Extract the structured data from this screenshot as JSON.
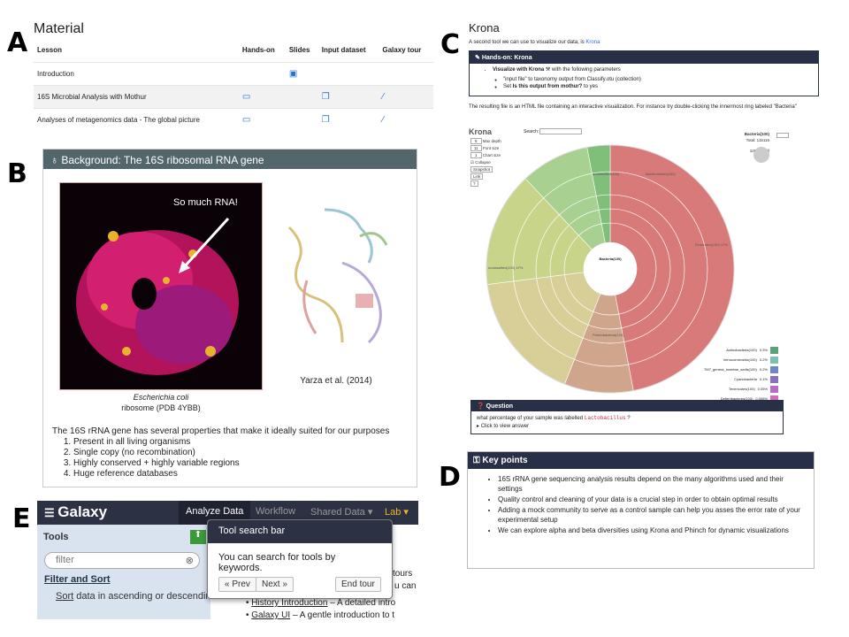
{
  "panel_labels": {
    "a": "A",
    "b": "B",
    "c": "C",
    "d": "D",
    "e": "E"
  },
  "material": {
    "title": "Material",
    "columns": [
      "Lesson",
      "Hands-on",
      "Slides",
      "Input dataset",
      "Galaxy tour"
    ],
    "rows": [
      {
        "lesson": "Introduction"
      },
      {
        "lesson": "16S Microbial Analysis with Mothur"
      },
      {
        "lesson": "Analyses of metagenomics data - The global picture"
      }
    ]
  },
  "background": {
    "title": "Background: The 16S ribosomal RNA gene",
    "image_label": "So much RNA!",
    "caption_species": "Escherichia coli",
    "caption_ribosome": "ribosome (PDB 4YBB)",
    "citation": "Yarza et al. (2014)",
    "intro": "The 16S rRNA gene has several properties that make it ideally suited for our purposes",
    "items": [
      "Present in all living organisms",
      "Single copy (no recombination)",
      "Highly conserved + highly variable regions",
      "Huge reference databases"
    ]
  },
  "krona": {
    "title": "Krona",
    "intro": "A second tool we can use to visualize our data, is",
    "intro_link": "Krona",
    "handson_title": "Hands-on: Krona",
    "step1_bold": "Visualize with Krona",
    "step1_rest": "with the following parameters",
    "param1": "\"input file\" to taxonomy output from Classify.otu (collection)",
    "param2_pre": "Set",
    "param2_bold": "Is this output from mothur?",
    "param2_post": "to yes",
    "result": "The resulting file is an HTML file containing an interactive visualization. For instance try double-clicking the innermost ring labeled \"Bacteria\"",
    "chart_center": "Bacteria(100)",
    "brand": "Krona",
    "search": "Search:",
    "max_depth": "Max depth",
    "font_size": "Font size",
    "chart_size": "Chart size",
    "collapse": "Collapse",
    "snapshot": "Snapshot",
    "link": "Link",
    "help": "?",
    "details_title": "Bacteria(100)",
    "total": "Total: 115116",
    "percent_of": "100% of all",
    "depth_value": "5",
    "font_value": "11",
    "chart_value": "1",
    "ring_labels": [
      "unclassified(100) 47%",
      "Firmicutes(100) 17%",
      "unclassified(100)",
      "Bacteroidetes(100)",
      "Proteobacteria(100)"
    ],
    "legend": [
      {
        "name": "Actinobacteria(100)",
        "pct": "0.3%",
        "color": "#5aa37a"
      },
      {
        "name": "Verrucomicrobia(100)",
        "pct": "0.2%",
        "color": "#7fbfae"
      },
      {
        "name": "TM7_genera_incertae_sedis(100)",
        "pct": "0.2%",
        "color": "#6f86c8"
      },
      {
        "name": "Cyanobacteria",
        "pct": "0.1%",
        "color": "#8a6ec2"
      },
      {
        "name": "Tenericutes(100)",
        "pct": "0.05%",
        "color": "#b76dc4"
      },
      {
        "name": "Deferribacteres(100)",
        "pct": "0.006%",
        "color": "#d56ab8"
      }
    ],
    "question_title": "Question",
    "question_pre": "what percentage of your sample was labelled",
    "question_code": "Lactobacillus",
    "question_post": "?",
    "answer": "Click to view answer"
  },
  "keypoints": {
    "title": "Key points",
    "items": [
      "16S rRNA gene sequencing analysis results depend on the many algorithms used and their settings",
      "Quality control and cleaning of your data is a crucial step in order to obtain optimal results",
      "Adding a mock community to serve as a control sample can help you asses the error rate of your experimental setup",
      "We can explore alpha and beta diversities using Krona and Phinch for dynamic visualizations"
    ]
  },
  "galaxy": {
    "logo": "Galaxy",
    "nav": [
      "Analyze Data",
      "Workflow",
      "Shared Data ▾",
      "Lab ▾"
    ],
    "tools_title": "Tools",
    "search_placeholder": "filter",
    "section": "Filter and Sort",
    "sort_link": "Sort",
    "sort_rest": "data in ascending or descending order",
    "doc_frag1": "tours",
    "doc_frag2": "u can",
    "doc_link1": "History Introduction",
    "doc_rest1": "– A detailed intro",
    "doc_link2": "Galaxy UI",
    "doc_rest2": "– A gentle introduction to t",
    "tour_title": "Tool search bar",
    "tour_body": "You can search for tools by keywords.",
    "prev": "« Prev",
    "next": "Next »",
    "end": "End tour"
  },
  "colors": {
    "galaxy_nav": "#2c3143",
    "tools_bg": "#d9e3f0",
    "background_header": "#53666b",
    "handson_header": "#283048",
    "link": "#2a6fd6",
    "lab": "#f0b429"
  }
}
